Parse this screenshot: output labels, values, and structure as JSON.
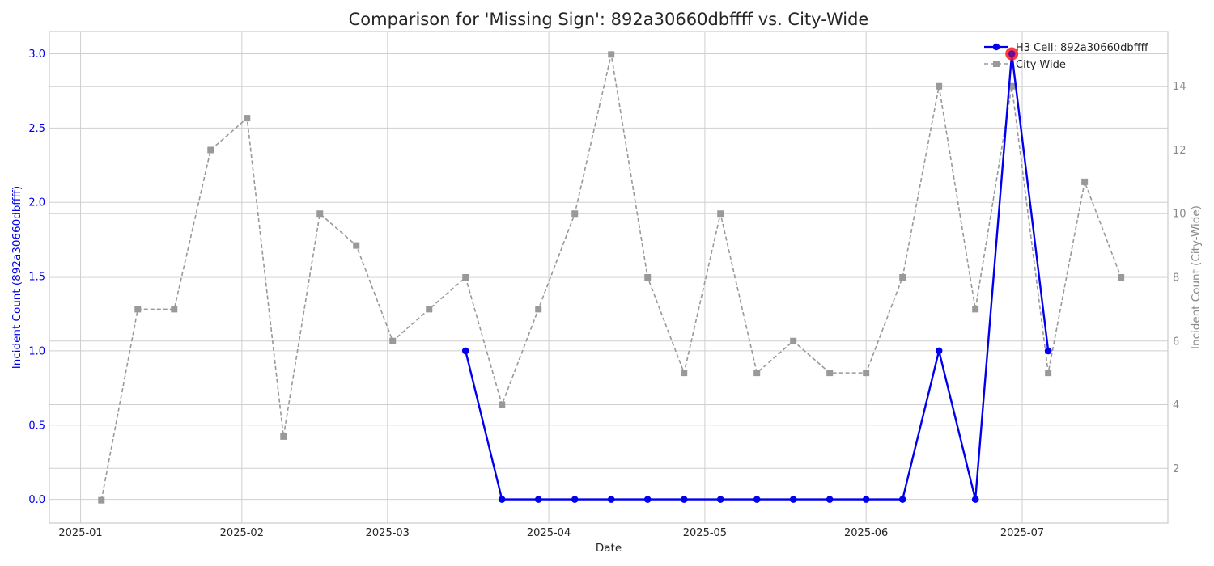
{
  "chart_data": {
    "type": "line",
    "title": "Comparison for 'Missing Sign': 892a30660dbffff vs. City-Wide",
    "xlabel": "Date",
    "ylabel_left": "Incident Count (892a30660dbffff)",
    "ylabel_right": "Incident Count (City-Wide)",
    "x_ticks": [
      "2025-01",
      "2025-02",
      "2025-03",
      "2025-04",
      "2025-05",
      "2025-06",
      "2025-07"
    ],
    "y_left_ticks": [
      "0.0",
      "0.5",
      "1.0",
      "1.5",
      "2.0",
      "2.5",
      "3.0"
    ],
    "y_right_ticks": [
      "2",
      "4",
      "6",
      "8",
      "10",
      "12",
      "14"
    ],
    "y_left_lim": [
      -0.16,
      3.15
    ],
    "y_right_lim": [
      0.28,
      15.72
    ],
    "grid": true,
    "legend_position": "top-right",
    "colors": {
      "h3": "#0000ee",
      "citywide": "#999999",
      "highlight": "#ff1a1a"
    },
    "series": [
      {
        "name": "H3 Cell: 892a30660dbffff",
        "axis": "left",
        "x": [
          "2025-03-16",
          "2025-03-23",
          "2025-03-30",
          "2025-04-06",
          "2025-04-13",
          "2025-04-20",
          "2025-04-27",
          "2025-05-04",
          "2025-05-11",
          "2025-05-18",
          "2025-05-25",
          "2025-06-01",
          "2025-06-08",
          "2025-06-15",
          "2025-06-22",
          "2025-06-29",
          "2025-07-06"
        ],
        "values": [
          1,
          0,
          0,
          0,
          0,
          0,
          0,
          0,
          0,
          0,
          0,
          0,
          0,
          1,
          0,
          3,
          1
        ]
      },
      {
        "name": "City-Wide",
        "axis": "right",
        "x": [
          "2025-01-05",
          "2025-01-12",
          "2025-01-19",
          "2025-01-26",
          "2025-02-02",
          "2025-02-09",
          "2025-02-16",
          "2025-02-23",
          "2025-03-02",
          "2025-03-09",
          "2025-03-16",
          "2025-03-23",
          "2025-03-30",
          "2025-04-06",
          "2025-04-13",
          "2025-04-20",
          "2025-04-27",
          "2025-05-04",
          "2025-05-11",
          "2025-05-18",
          "2025-05-25",
          "2025-06-01",
          "2025-06-08",
          "2025-06-15",
          "2025-06-22",
          "2025-06-29",
          "2025-07-06",
          "2025-07-13",
          "2025-07-20"
        ],
        "values": [
          1,
          7,
          7,
          12,
          13,
          3,
          10,
          9,
          6,
          7,
          8,
          4,
          7,
          10,
          15,
          8,
          5,
          10,
          5,
          6,
          5,
          5,
          8,
          14,
          7,
          14,
          5,
          11,
          8
        ]
      }
    ],
    "highlight_point": {
      "series": "H3 Cell: 892a30660dbffff",
      "x": "2025-06-29",
      "value": 3
    }
  }
}
